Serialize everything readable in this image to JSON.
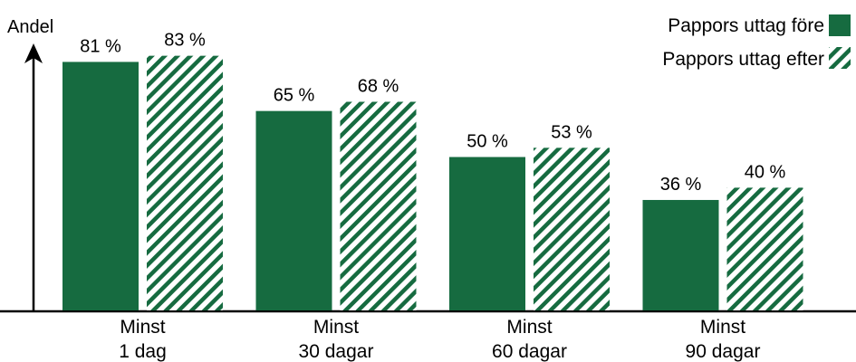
{
  "chart_data": {
    "type": "bar",
    "ylabel": "Andel",
    "categories": [
      [
        "Minst",
        "1 dag"
      ],
      [
        "Minst",
        "30 dagar"
      ],
      [
        "Minst",
        "60 dagar"
      ],
      [
        "Minst",
        "90 dagar"
      ]
    ],
    "series": [
      {
        "name": "Pappors uttag före",
        "values": [
          81,
          65,
          50,
          36
        ],
        "labels": [
          "81 %",
          "65 %",
          "50 %",
          "36 %"
        ],
        "color": "#166b40",
        "pattern": "solid"
      },
      {
        "name": "Pappors uttag efter",
        "values": [
          83,
          68,
          53,
          40
        ],
        "labels": [
          "83 %",
          "68 %",
          "53 %",
          "40 %"
        ],
        "color": "#166b40",
        "pattern": "hatched"
      }
    ],
    "ylim": [
      0,
      100
    ],
    "grid": false,
    "legend": "top-right"
  }
}
